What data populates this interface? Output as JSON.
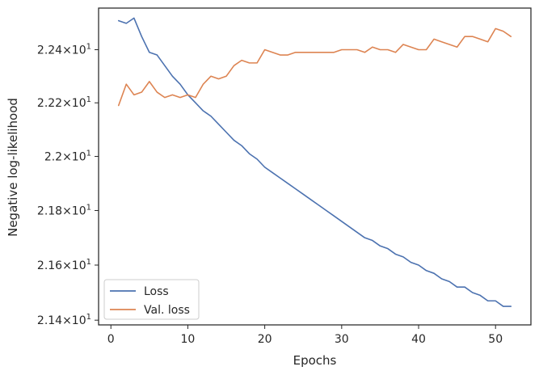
{
  "chart_data": {
    "type": "line",
    "title": "",
    "xlabel": "Epochs",
    "ylabel": "Negative log-likelihood",
    "y_scale": "log",
    "xlim": [
      -1.6,
      54.6
    ],
    "ylim": [
      21.383,
      22.558
    ],
    "x_ticks": [
      {
        "value": 0,
        "label": "0"
      },
      {
        "value": 10,
        "label": "10"
      },
      {
        "value": 20,
        "label": "20"
      },
      {
        "value": 30,
        "label": "30"
      },
      {
        "value": 40,
        "label": "40"
      },
      {
        "value": 50,
        "label": "50"
      }
    ],
    "y_ticks": [
      {
        "value": 21.4,
        "mantissa": "2.14",
        "exp": "1"
      },
      {
        "value": 21.6,
        "mantissa": "2.16",
        "exp": "1"
      },
      {
        "value": 21.8,
        "mantissa": "2.18",
        "exp": "1"
      },
      {
        "value": 22.0,
        "mantissa": "2.2",
        "exp": "1"
      },
      {
        "value": 22.2,
        "mantissa": "2.22",
        "exp": "1"
      },
      {
        "value": 22.4,
        "mantissa": "2.24",
        "exp": "1"
      }
    ],
    "tick_times": "×10",
    "grid": false,
    "legend_position": "lower-left",
    "x": [
      1,
      2,
      3,
      4,
      5,
      6,
      7,
      8,
      9,
      10,
      11,
      12,
      13,
      14,
      15,
      16,
      17,
      18,
      19,
      20,
      21,
      22,
      23,
      24,
      25,
      26,
      27,
      28,
      29,
      30,
      31,
      32,
      33,
      34,
      35,
      36,
      37,
      38,
      39,
      40,
      41,
      42,
      43,
      44,
      45,
      46,
      47,
      48,
      49,
      50,
      51,
      52
    ],
    "series": [
      {
        "name": "Loss",
        "color": "#4c72b0",
        "values": [
          22.51,
          22.5,
          22.52,
          22.45,
          22.39,
          22.38,
          22.34,
          22.3,
          22.27,
          22.23,
          22.2,
          22.17,
          22.15,
          22.12,
          22.09,
          22.06,
          22.04,
          22.01,
          21.99,
          21.96,
          21.94,
          21.92,
          21.9,
          21.88,
          21.86,
          21.84,
          21.82,
          21.8,
          21.78,
          21.76,
          21.74,
          21.72,
          21.7,
          21.69,
          21.67,
          21.66,
          21.64,
          21.63,
          21.61,
          21.6,
          21.58,
          21.57,
          21.55,
          21.54,
          21.52,
          21.52,
          21.5,
          21.49,
          21.47,
          21.47,
          21.45,
          21.45
        ]
      },
      {
        "name": "Val. loss",
        "color": "#dd8452",
        "values": [
          22.19,
          22.27,
          22.23,
          22.24,
          22.28,
          22.24,
          22.22,
          22.23,
          22.22,
          22.23,
          22.22,
          22.27,
          22.3,
          22.29,
          22.3,
          22.34,
          22.36,
          22.35,
          22.35,
          22.4,
          22.39,
          22.38,
          22.38,
          22.39,
          22.39,
          22.39,
          22.39,
          22.39,
          22.39,
          22.4,
          22.4,
          22.4,
          22.39,
          22.41,
          22.4,
          22.4,
          22.39,
          22.42,
          22.41,
          22.4,
          22.4,
          22.44,
          22.43,
          22.42,
          22.41,
          22.45,
          22.45,
          22.44,
          22.43,
          22.48,
          22.47,
          22.45
        ]
      }
    ]
  }
}
